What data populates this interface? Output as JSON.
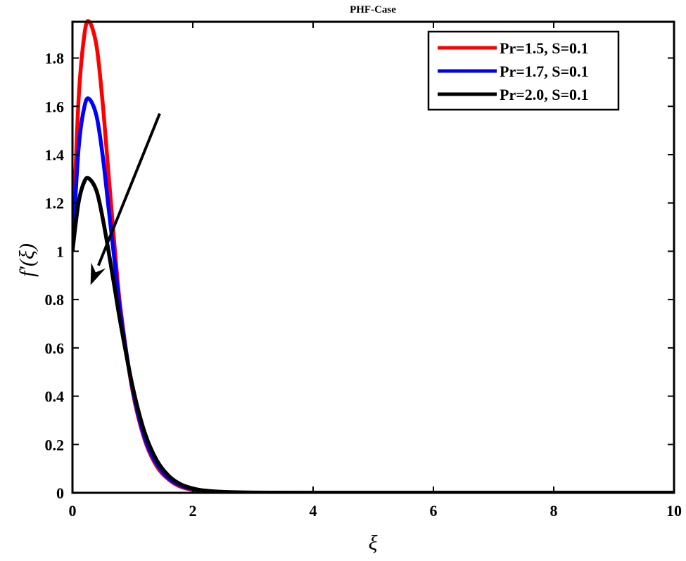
{
  "chart_data": {
    "type": "line",
    "title": "PHF-Case",
    "xlabel": "ξ",
    "ylabel": "f′(ξ)",
    "xlim": [
      0,
      10
    ],
    "ylim": [
      0,
      1.95
    ],
    "xticks": [
      0,
      2,
      4,
      6,
      8,
      10
    ],
    "xtick_labels": [
      "0",
      "2",
      "4",
      "6",
      "8",
      "10"
    ],
    "yticks": [
      0,
      0.2,
      0.4,
      0.6,
      0.8,
      1.0,
      1.2,
      1.4,
      1.6,
      1.8
    ],
    "ytick_labels": [
      "0",
      "0.2",
      "0.4",
      "0.6",
      "0.8",
      "1",
      "1.2",
      "1.4",
      "1.6",
      "1.8"
    ],
    "grid": false,
    "legend_position": "upper right",
    "x": [
      0,
      0.1,
      0.2,
      0.28,
      0.4,
      0.5,
      0.6,
      0.7,
      0.8,
      1.0,
      1.2,
      1.4,
      1.6,
      1.8,
      2.0,
      2.2,
      2.5,
      3.0,
      4.0,
      6.0,
      8.0,
      10.0
    ],
    "series": [
      {
        "name": "Pr=1.5, S=0.1",
        "color": "#ff0000",
        "values": [
          1.0,
          1.62,
          1.9,
          1.95,
          1.85,
          1.62,
          1.32,
          1.02,
          0.76,
          0.42,
          0.22,
          0.11,
          0.055,
          0.025,
          0.012,
          0.006,
          0.002,
          0.0005,
          0.0,
          0.0,
          0.0,
          0.0
        ]
      },
      {
        "name": "Pr=1.7, S=0.1",
        "color": "#0000ff",
        "values": [
          1.0,
          1.42,
          1.6,
          1.63,
          1.56,
          1.4,
          1.18,
          0.96,
          0.74,
          0.43,
          0.23,
          0.12,
          0.06,
          0.03,
          0.015,
          0.007,
          0.003,
          0.0007,
          0.0,
          0.0,
          0.0,
          0.0
        ]
      },
      {
        "name": "Pr=2.0, S=0.1",
        "color": "#000000",
        "values": [
          1.0,
          1.2,
          1.29,
          1.3,
          1.25,
          1.14,
          1.0,
          0.85,
          0.7,
          0.44,
          0.25,
          0.135,
          0.07,
          0.035,
          0.018,
          0.009,
          0.004,
          0.001,
          0.0,
          0.0,
          0.0,
          0.0
        ]
      }
    ],
    "annotations": [
      {
        "type": "arrow",
        "from": [
          1.45,
          1.57
        ],
        "to": [
          0.3,
          0.86
        ],
        "color": "#000000",
        "meaning": "increasing Pr"
      }
    ]
  },
  "legend": {
    "items": [
      {
        "label": "Pr=1.5, S=0.1",
        "color": "#ff0000"
      },
      {
        "label": "Pr=1.7, S=0.1",
        "color": "#0000ff"
      },
      {
        "label": "Pr=2.0, S=0.1",
        "color": "#000000"
      }
    ]
  }
}
